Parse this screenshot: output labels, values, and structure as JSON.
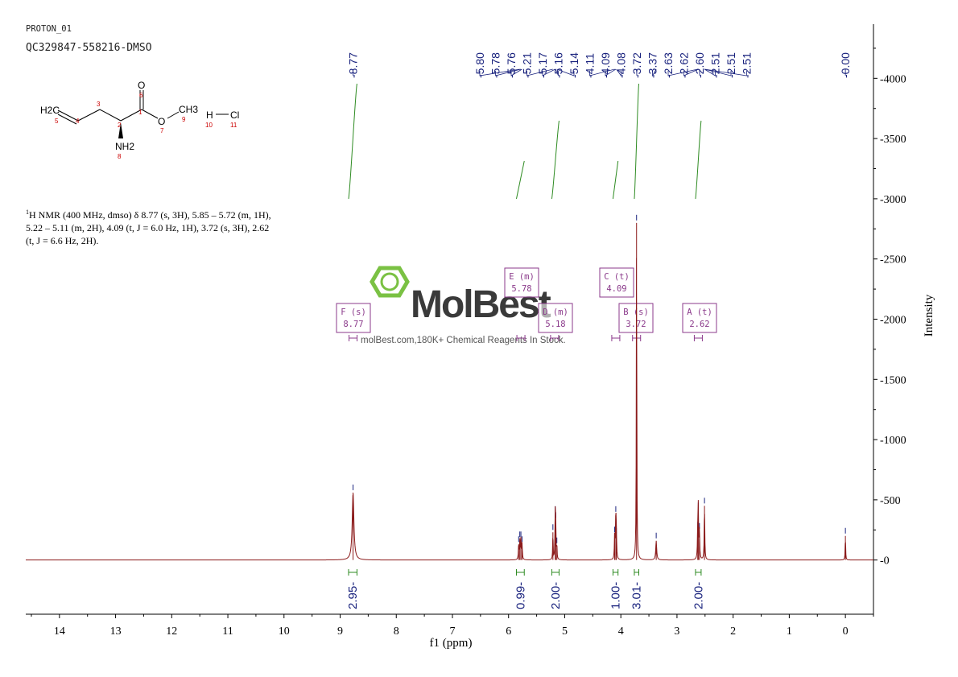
{
  "header": {
    "experiment": "PROTON_01",
    "sample": "QC329847-558216-DMSO"
  },
  "description": {
    "sup": "1",
    "line1": "H NMR (400 MHz, dmso) δ 8.77 (s, 3H), 5.85 – 5.72 (m, 1H),",
    "line2": "5.22 – 5.11 (m, 2H), 4.09 (t, J = 6.0 Hz, 1H), 3.72 (s, 3H), 2.62",
    "line3": "(t, J = 6.6 Hz, 2H)."
  },
  "structure": {
    "atoms": {
      "h2c": "H2C",
      "o_top": "O",
      "o_ester": "O",
      "ch3": "CH3",
      "nh2": "NH2",
      "h": "H",
      "cl": "Cl"
    },
    "numbers": [
      "1",
      "2",
      "3",
      "4",
      "5",
      "6",
      "7",
      "8",
      "9",
      "10",
      "11"
    ]
  },
  "watermark": {
    "brand": "MolBest",
    "tagline": "molBest.com,180K+ Chemical Reagents In Stock."
  },
  "colors": {
    "spectrum": "#8b1a1a",
    "integral": "#2e8b22",
    "peak_label": "#1a237e",
    "multiplet": "#8b3a8b",
    "atom_number": "#cc0000",
    "watermark_green": "#7ac143"
  },
  "chart_data": {
    "type": "line",
    "xlabel": "f1 (ppm)",
    "ylabel": "Intensity",
    "xlim": [
      14.6,
      -0.5
    ],
    "ylim": [
      -450,
      4450
    ],
    "x_ticks": [
      14,
      13,
      12,
      11,
      10,
      9,
      8,
      7,
      6,
      5,
      4,
      3,
      2,
      1,
      0
    ],
    "y_ticks": [
      0,
      500,
      1000,
      1500,
      2000,
      2500,
      3000,
      3500,
      4000
    ],
    "peaks": [
      {
        "ppm": 8.77,
        "height": 560,
        "width": 0.018
      },
      {
        "ppm": 5.82,
        "height": 130,
        "width": 0.006
      },
      {
        "ppm": 5.8,
        "height": 170,
        "width": 0.006
      },
      {
        "ppm": 5.78,
        "height": 170,
        "width": 0.006
      },
      {
        "ppm": 5.76,
        "height": 130,
        "width": 0.006
      },
      {
        "ppm": 5.21,
        "height": 230,
        "width": 0.005
      },
      {
        "ppm": 5.17,
        "height": 380,
        "width": 0.005
      },
      {
        "ppm": 5.16,
        "height": 330,
        "width": 0.005
      },
      {
        "ppm": 5.14,
        "height": 120,
        "width": 0.005
      },
      {
        "ppm": 4.11,
        "height": 210,
        "width": 0.006
      },
      {
        "ppm": 4.09,
        "height": 380,
        "width": 0.006
      },
      {
        "ppm": 4.08,
        "height": 200,
        "width": 0.006
      },
      {
        "ppm": 3.72,
        "height": 2800,
        "width": 0.005
      },
      {
        "ppm": 3.37,
        "height": 160,
        "width": 0.01
      },
      {
        "ppm": 2.63,
        "height": 250,
        "width": 0.006
      },
      {
        "ppm": 2.62,
        "height": 410,
        "width": 0.006
      },
      {
        "ppm": 2.6,
        "height": 240,
        "width": 0.006
      },
      {
        "ppm": 2.51,
        "height": 450,
        "width": 0.006
      },
      {
        "ppm": 0.0,
        "height": 200,
        "width": 0.005
      }
    ],
    "peak_labels_group1": [
      "8.77"
    ],
    "peak_labels_group2": [
      "5.80",
      "5.78",
      "5.76",
      "5.21",
      "5.17",
      "5.16",
      "5.14",
      "4.11",
      "4.09",
      "4.08",
      "3.72",
      "3.37",
      "2.63",
      "2.62",
      "2.60",
      "2.51",
      "2.51",
      "2.51"
    ],
    "peak_labels_group3": [
      "0.00"
    ],
    "integrals": [
      {
        "from": 8.85,
        "to": 8.7,
        "value": "2.95"
      },
      {
        "from": 5.86,
        "to": 5.72,
        "value": "0.99"
      },
      {
        "from": 5.23,
        "to": 5.1,
        "value": "2.00"
      },
      {
        "from": 4.14,
        "to": 4.05,
        "value": "1.00"
      },
      {
        "from": 3.76,
        "to": 3.68,
        "value": "3.01"
      },
      {
        "from": 2.67,
        "to": 2.57,
        "value": "2.00"
      }
    ],
    "multiplets": [
      {
        "letter": "F",
        "type": "(s)",
        "shift": "8.77",
        "ppm": 8.77
      },
      {
        "letter": "E",
        "type": "(m)",
        "shift": "5.78",
        "ppm": 5.78
      },
      {
        "letter": "D",
        "type": "(m)",
        "shift": "5.18",
        "ppm": 5.18
      },
      {
        "letter": "C",
        "type": "(t)",
        "shift": "4.09",
        "ppm": 4.09
      },
      {
        "letter": "B",
        "type": "(s)",
        "shift": "3.72",
        "ppm": 3.72
      },
      {
        "letter": "A",
        "type": "(t)",
        "shift": "2.62",
        "ppm": 2.62
      }
    ]
  }
}
